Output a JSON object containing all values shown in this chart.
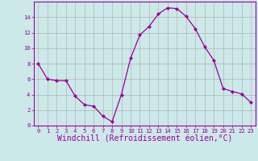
{
  "x": [
    0,
    1,
    2,
    3,
    4,
    5,
    6,
    7,
    8,
    9,
    10,
    11,
    12,
    13,
    14,
    15,
    16,
    17,
    18,
    19,
    20,
    21,
    22,
    23
  ],
  "y": [
    8,
    6,
    5.8,
    5.8,
    3.8,
    2.7,
    2.5,
    1.2,
    0.5,
    4.0,
    8.7,
    11.7,
    12.8,
    14.4,
    15.2,
    15.1,
    14.1,
    12.5,
    10.2,
    8.4,
    4.8,
    4.4,
    4.1,
    3.0
  ],
  "line_color": "#990099",
  "marker": "D",
  "marker_size": 2.0,
  "background_color": "#cce8e8",
  "grid_color": "#aaaaaa",
  "xlabel": "Windchill (Refroidissement éolien,°C)",
  "xlabel_color": "#990099",
  "ylim": [
    0,
    16
  ],
  "xlim": [
    -0.5,
    23.5
  ],
  "yticks": [
    0,
    2,
    4,
    6,
    8,
    10,
    12,
    14
  ],
  "xticks": [
    0,
    1,
    2,
    3,
    4,
    5,
    6,
    7,
    8,
    9,
    10,
    11,
    12,
    13,
    14,
    15,
    16,
    17,
    18,
    19,
    20,
    21,
    22,
    23
  ],
  "tick_label_color": "#990099",
  "tick_label_fontsize": 5.2,
  "xlabel_fontsize": 7.0,
  "spine_color": "#990099"
}
